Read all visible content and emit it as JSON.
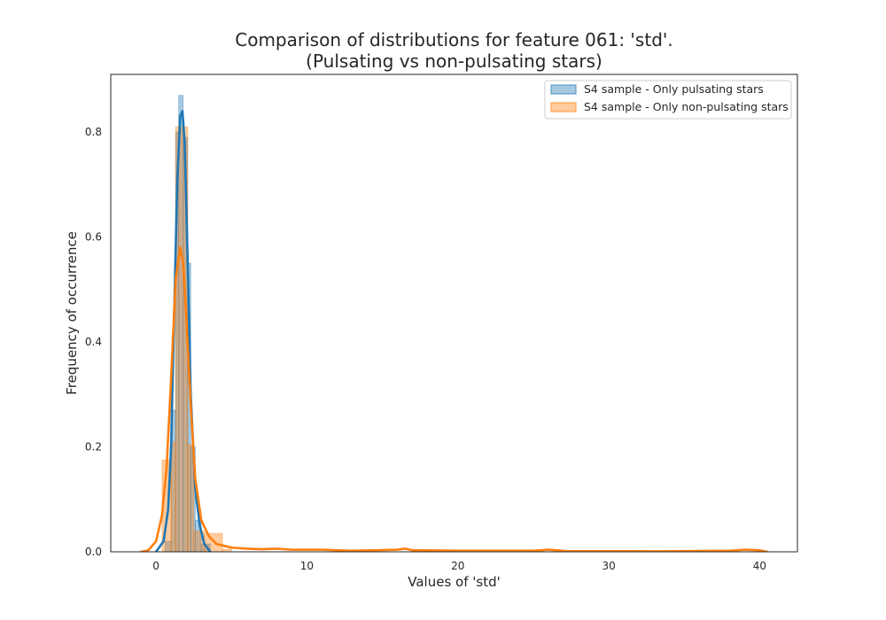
{
  "chart_data": {
    "type": "histogram",
    "title_line1": "Comparison of distributions for feature 061: 'std'.",
    "title_line2": "(Pulsating vs non-pulsating stars)",
    "xlabel": "Values of 'std'",
    "ylabel": "Frequency of occurrence",
    "xlim": [
      -3,
      42.5
    ],
    "ylim": [
      0,
      0.91
    ],
    "xticks": [
      0,
      10,
      20,
      30,
      40
    ],
    "yticks": [
      0.0,
      0.2,
      0.4,
      0.6,
      0.8
    ],
    "grid": false,
    "legend_position": "top-right",
    "series": [
      {
        "name": "S4 sample - Only pulsating stars",
        "color": "#1f77b4",
        "hist_bins": [
          {
            "x0": 0.6,
            "x1": 1.0,
            "y": 0.02
          },
          {
            "x0": 1.0,
            "x1": 1.3,
            "y": 0.27
          },
          {
            "x0": 1.3,
            "x1": 1.5,
            "y": 0.8
          },
          {
            "x0": 1.5,
            "x1": 1.8,
            "y": 0.87
          },
          {
            "x0": 1.8,
            "x1": 2.1,
            "y": 0.79
          },
          {
            "x0": 2.1,
            "x1": 2.3,
            "y": 0.55
          },
          {
            "x0": 2.3,
            "x1": 2.6,
            "y": 0.2
          },
          {
            "x0": 2.6,
            "x1": 3.0,
            "y": 0.06
          },
          {
            "x0": 3.0,
            "x1": 3.6,
            "y": 0.015
          }
        ],
        "kde": {
          "x": [
            0.0,
            0.5,
            0.8,
            1.0,
            1.2,
            1.4,
            1.6,
            1.75,
            1.9,
            2.1,
            2.3,
            2.6,
            2.9,
            3.2,
            3.6
          ],
          "y": [
            0.0,
            0.02,
            0.08,
            0.2,
            0.45,
            0.7,
            0.83,
            0.84,
            0.78,
            0.55,
            0.3,
            0.12,
            0.05,
            0.015,
            0.0
          ]
        }
      },
      {
        "name": "S4 sample - Only non-pulsating stars",
        "color": "#ff7f0e",
        "hist_bins": [
          {
            "x0": 0.4,
            "x1": 1.0,
            "y": 0.175
          },
          {
            "x0": 1.0,
            "x1": 1.3,
            "y": 0.21
          },
          {
            "x0": 1.3,
            "x1": 2.1,
            "y": 0.81
          },
          {
            "x0": 2.1,
            "x1": 2.5,
            "y": 0.205
          },
          {
            "x0": 2.5,
            "x1": 3.2,
            "y": 0.04
          },
          {
            "x0": 3.2,
            "x1": 4.4,
            "y": 0.035
          },
          {
            "x0": 4.4,
            "x1": 5.0,
            "y": 0.005
          }
        ],
        "kde": {
          "x": [
            -1.0,
            -0.5,
            0.0,
            0.4,
            0.7,
            1.0,
            1.3,
            1.6,
            1.8,
            2.0,
            2.3,
            2.6,
            3.0,
            3.5,
            4.0,
            5.0,
            6.0,
            7.0,
            8.0,
            9.0,
            11.0,
            13.0,
            16.0,
            16.5,
            17.0,
            20.0,
            25.0,
            26.0,
            27.0,
            33.0,
            38.0,
            39.0,
            40.0,
            40.5
          ],
          "y": [
            0.0,
            0.003,
            0.02,
            0.07,
            0.16,
            0.33,
            0.52,
            0.58,
            0.55,
            0.45,
            0.28,
            0.14,
            0.06,
            0.03,
            0.015,
            0.008,
            0.006,
            0.005,
            0.006,
            0.004,
            0.004,
            0.002,
            0.004,
            0.006,
            0.003,
            0.002,
            0.002,
            0.004,
            0.002,
            0.001,
            0.002,
            0.004,
            0.003,
            0.0
          ]
        }
      }
    ]
  }
}
